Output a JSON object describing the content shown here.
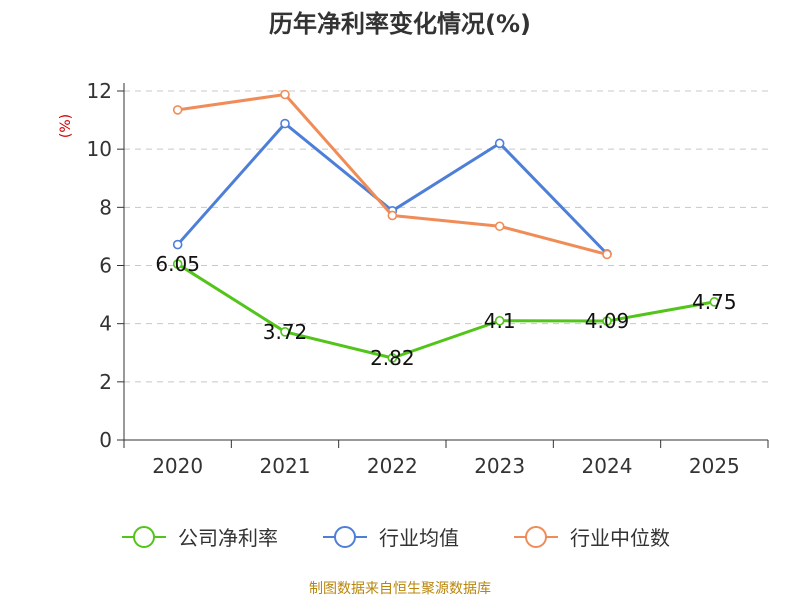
{
  "chart_data": {
    "type": "line",
    "title": "历年净利率变化情况(%)",
    "ylabel": "(%)",
    "xlabel": "",
    "categories": [
      "2020",
      "2021",
      "2022",
      "2023",
      "2024",
      "2025"
    ],
    "ylim": [
      0,
      12
    ],
    "yticks": [
      0,
      2,
      4,
      6,
      8,
      10,
      12
    ],
    "grid": "horizontal dashed",
    "legend_position": "bottom",
    "series": [
      {
        "name": "公司净利率",
        "color": "#52c41a",
        "values": [
          6.05,
          3.72,
          2.82,
          4.1,
          4.09,
          4.75
        ],
        "labels": [
          "6.05",
          "3.72",
          "2.82",
          "4.1",
          "4.09",
          "4.75"
        ]
      },
      {
        "name": "行业均值",
        "color": "#4e7fd8",
        "values": [
          6.72,
          10.88,
          7.88,
          10.2,
          6.4,
          null
        ],
        "labels": null
      },
      {
        "name": "行业中位数",
        "color": "#f08c57",
        "values": [
          11.35,
          11.88,
          7.72,
          7.35,
          6.38,
          null
        ],
        "labels": null
      }
    ],
    "source": "制图数据来自恒生聚源数据库"
  }
}
